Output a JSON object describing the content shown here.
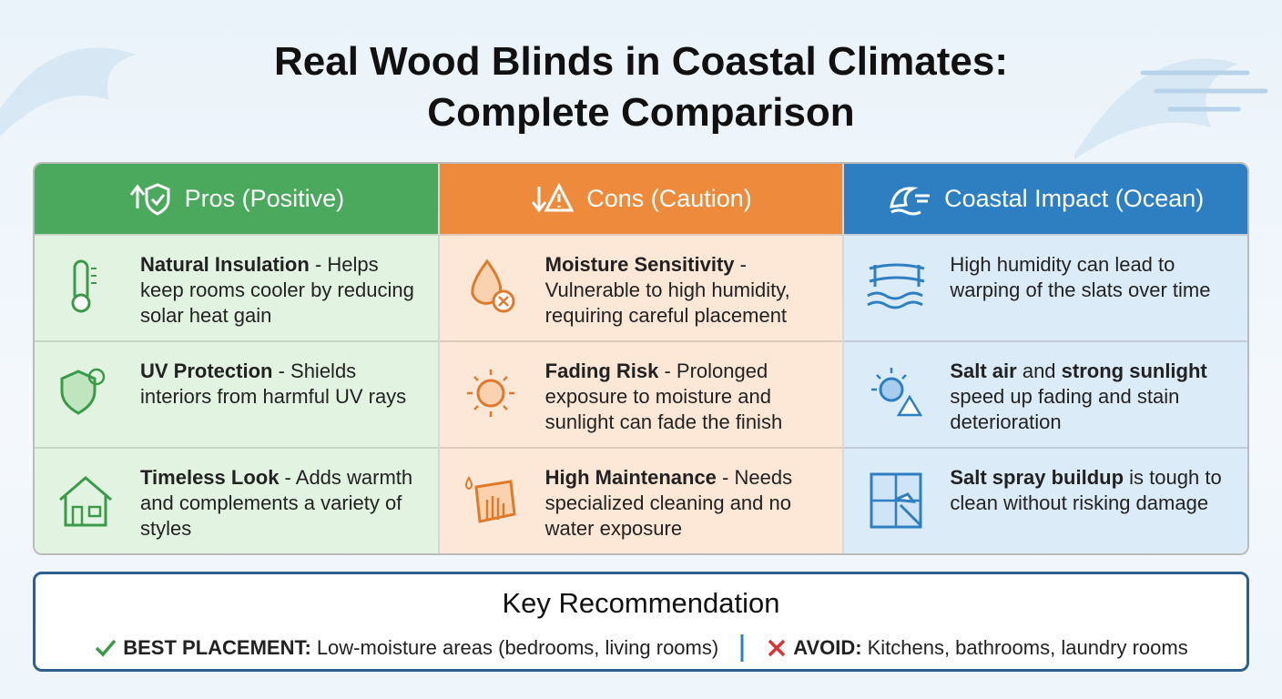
{
  "header": {
    "title": "Real Wood Blinds in Coastal Climates: Complete Comparison"
  },
  "columns": [
    {
      "heading": "Pros (Positive)",
      "cells": [
        [
          {
            "text": "Natural Insulation",
            "bold": true
          },
          {
            "text": " - Helps keep rooms cooler by reducing solar heat gain",
            "bold": false
          }
        ],
        [
          {
            "text": "UV Protection",
            "bold": true
          },
          {
            "text": " - Shields interiors from harmful UV rays",
            "bold": false
          }
        ],
        [
          {
            "text": "Timeless Look",
            "bold": true
          },
          {
            "text": " - Adds warmth and complements a variety of styles",
            "bold": false
          }
        ]
      ]
    },
    {
      "heading": "Cons (Caution)",
      "cells": [
        [
          {
            "text": "Moisture Sensitivity",
            "bold": true
          },
          {
            "text": " - Vulnerable to high humidity, requiring careful placement",
            "bold": false
          }
        ],
        [
          {
            "text": "Fading Risk",
            "bold": true
          },
          {
            "text": " - Prolonged exposure to moisture and sunlight can fade the finish",
            "bold": false
          }
        ],
        [
          {
            "text": "High Maintenance",
            "bold": true
          },
          {
            "text": " - Needs specialized cleaning and no water exposure",
            "bold": false
          }
        ]
      ]
    },
    {
      "heading": "Coastal Impact (Ocean)",
      "cells": [
        [
          {
            "text": "High humidity can lead to warping of the slats over time",
            "bold": false
          }
        ],
        [
          {
            "text": "Salt air",
            "bold": true
          },
          {
            "text": " and ",
            "bold": false
          },
          {
            "text": "strong sunlight",
            "bold": true
          },
          {
            "text": " speed up fading and stain deterioration",
            "bold": false
          }
        ],
        [
          {
            "text": "Salt spray buildup",
            "bold": true
          },
          {
            "text": " is tough to clean without risking damage",
            "bold": false
          }
        ]
      ]
    }
  ],
  "recommendation": {
    "title": "Key Recommendation",
    "best_label": "BEST PLACEMENT:",
    "best_text": "Low-moisture areas (bedrooms, living rooms)",
    "avoid_label": "AVOID:",
    "avoid_text": "Kitchens, bathrooms, laundry rooms"
  }
}
